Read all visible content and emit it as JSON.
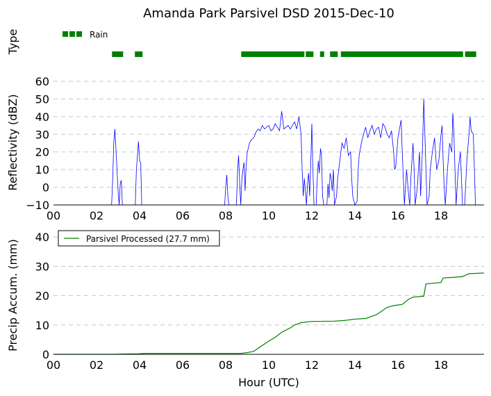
{
  "figure_title": "Amanda Park Parsivel DSD 2015-Dec-10",
  "chart_data": [
    {
      "type": "scatter",
      "panel": "precip-type",
      "ylabel": "Type",
      "legend": {
        "entries": [
          "Rain"
        ],
        "placement": "top-left"
      },
      "color": "#008000",
      "x_units": "hour UTC",
      "xlim": [
        0,
        20
      ],
      "rain_intervals": [
        [
          2.72,
          3.18
        ],
        [
          3.78,
          4.1
        ],
        [
          8.72,
          11.58
        ],
        [
          11.72,
          12.1
        ],
        [
          12.38,
          12.62
        ],
        [
          12.85,
          13.25
        ],
        [
          13.35,
          18.98
        ],
        [
          19.12,
          19.62
        ]
      ]
    },
    {
      "type": "line",
      "panel": "reflectivity",
      "ylabel": "Reflectivity (dBZ)",
      "ylim": [
        -10,
        60
      ],
      "yticks": [
        "−10",
        "0",
        "10",
        "20",
        "30",
        "40",
        "50",
        "60"
      ],
      "xlim": [
        0,
        20
      ],
      "xticks": [
        "00",
        "02",
        "04",
        "06",
        "08",
        "10",
        "12",
        "14",
        "16",
        "18"
      ],
      "grid": true,
      "color": "#0000ff",
      "series": [
        {
          "values_hour_dbz": [
            [
              0,
              -10
            ],
            [
              2.7,
              -10
            ],
            [
              2.75,
              5
            ],
            [
              2.8,
              25
            ],
            [
              2.85,
              33
            ],
            [
              2.9,
              22
            ],
            [
              2.95,
              10
            ],
            [
              3.0,
              -2
            ],
            [
              3.05,
              -10
            ],
            [
              3.1,
              2
            ],
            [
              3.15,
              4
            ],
            [
              3.2,
              -10
            ],
            [
              3.8,
              -10
            ],
            [
              3.85,
              10
            ],
            [
              3.9,
              18
            ],
            [
              3.95,
              26
            ],
            [
              4.0,
              15
            ],
            [
              4.05,
              14
            ],
            [
              4.1,
              -10
            ],
            [
              7.95,
              -10
            ],
            [
              8.0,
              0
            ],
            [
              8.05,
              7
            ],
            [
              8.1,
              -5
            ],
            [
              8.15,
              -10
            ],
            [
              8.5,
              -10
            ],
            [
              8.55,
              10
            ],
            [
              8.6,
              18
            ],
            [
              8.65,
              2
            ],
            [
              8.7,
              -10
            ],
            [
              8.75,
              5
            ],
            [
              8.8,
              10
            ],
            [
              8.85,
              14
            ],
            [
              8.9,
              -2
            ],
            [
              8.95,
              12
            ],
            [
              9.0,
              20
            ],
            [
              9.05,
              22
            ],
            [
              9.1,
              25
            ],
            [
              9.2,
              27
            ],
            [
              9.3,
              28
            ],
            [
              9.4,
              31
            ],
            [
              9.5,
              33
            ],
            [
              9.6,
              32
            ],
            [
              9.7,
              35
            ],
            [
              9.8,
              33
            ],
            [
              9.9,
              34
            ],
            [
              10.0,
              35
            ],
            [
              10.1,
              32
            ],
            [
              10.2,
              33
            ],
            [
              10.3,
              36
            ],
            [
              10.4,
              34
            ],
            [
              10.5,
              32
            ],
            [
              10.6,
              43
            ],
            [
              10.7,
              33
            ],
            [
              10.8,
              34
            ],
            [
              10.9,
              35
            ],
            [
              11.0,
              33
            ],
            [
              11.1,
              35
            ],
            [
              11.2,
              37
            ],
            [
              11.3,
              33
            ],
            [
              11.4,
              40
            ],
            [
              11.5,
              30
            ],
            [
              11.55,
              10
            ],
            [
              11.6,
              -5
            ],
            [
              11.65,
              5
            ],
            [
              11.7,
              -2
            ],
            [
              11.75,
              -10
            ],
            [
              11.8,
              2
            ],
            [
              11.85,
              8
            ],
            [
              11.9,
              -5
            ],
            [
              11.95,
              12
            ],
            [
              12.0,
              36
            ],
            [
              12.05,
              10
            ],
            [
              12.1,
              -10
            ],
            [
              12.2,
              -10
            ],
            [
              12.25,
              5
            ],
            [
              12.3,
              15
            ],
            [
              12.35,
              8
            ],
            [
              12.4,
              22
            ],
            [
              12.45,
              18
            ],
            [
              12.5,
              -5
            ],
            [
              12.55,
              -10
            ],
            [
              12.7,
              -10
            ],
            [
              12.75,
              2
            ],
            [
              12.8,
              -6
            ],
            [
              12.85,
              8
            ],
            [
              12.9,
              5
            ],
            [
              12.95,
              -2
            ],
            [
              13.0,
              10
            ],
            [
              13.05,
              -10
            ],
            [
              13.15,
              -5
            ],
            [
              13.2,
              5
            ],
            [
              13.3,
              15
            ],
            [
              13.4,
              25
            ],
            [
              13.5,
              22
            ],
            [
              13.6,
              28
            ],
            [
              13.7,
              18
            ],
            [
              13.8,
              20
            ],
            [
              13.85,
              5
            ],
            [
              13.9,
              -5
            ],
            [
              14.0,
              -10
            ],
            [
              14.1,
              -8
            ],
            [
              14.15,
              10
            ],
            [
              14.2,
              18
            ],
            [
              14.3,
              25
            ],
            [
              14.4,
              30
            ],
            [
              14.5,
              34
            ],
            [
              14.6,
              28
            ],
            [
              14.7,
              32
            ],
            [
              14.8,
              35
            ],
            [
              14.9,
              30
            ],
            [
              15.0,
              33
            ],
            [
              15.1,
              34
            ],
            [
              15.2,
              28
            ],
            [
              15.3,
              36
            ],
            [
              15.4,
              34
            ],
            [
              15.5,
              30
            ],
            [
              15.6,
              28
            ],
            [
              15.7,
              32
            ],
            [
              15.8,
              20
            ],
            [
              15.85,
              10
            ],
            [
              15.9,
              12
            ],
            [
              16.0,
              28
            ],
            [
              16.1,
              35
            ],
            [
              16.15,
              38
            ],
            [
              16.2,
              20
            ],
            [
              16.25,
              5
            ],
            [
              16.3,
              -10
            ],
            [
              16.4,
              10
            ],
            [
              16.5,
              -5
            ],
            [
              16.55,
              -10
            ],
            [
              16.6,
              5
            ],
            [
              16.7,
              25
            ],
            [
              16.75,
              10
            ],
            [
              16.8,
              -10
            ],
            [
              16.9,
              0
            ],
            [
              17.0,
              20
            ],
            [
              17.05,
              -5
            ],
            [
              17.1,
              10
            ],
            [
              17.15,
              25
            ],
            [
              17.2,
              50
            ],
            [
              17.25,
              30
            ],
            [
              17.3,
              10
            ],
            [
              17.35,
              -10
            ],
            [
              17.45,
              -5
            ],
            [
              17.5,
              10
            ],
            [
              17.6,
              20
            ],
            [
              17.7,
              28
            ],
            [
              17.8,
              10
            ],
            [
              17.9,
              15
            ],
            [
              18.0,
              30
            ],
            [
              18.05,
              35
            ],
            [
              18.1,
              15
            ],
            [
              18.15,
              0
            ],
            [
              18.2,
              -10
            ],
            [
              18.3,
              10
            ],
            [
              18.4,
              25
            ],
            [
              18.5,
              20
            ],
            [
              18.55,
              42
            ],
            [
              18.6,
              30
            ],
            [
              18.7,
              -10
            ],
            [
              18.8,
              10
            ],
            [
              18.9,
              20
            ],
            [
              19.0,
              -10
            ],
            [
              19.1,
              -10
            ],
            [
              19.2,
              15
            ],
            [
              19.3,
              30
            ],
            [
              19.35,
              40
            ],
            [
              19.4,
              32
            ],
            [
              19.5,
              30
            ],
            [
              19.55,
              10
            ],
            [
              19.6,
              -10
            ],
            [
              20,
              -10
            ]
          ]
        }
      ]
    },
    {
      "type": "line",
      "panel": "precip-accumulation",
      "ylabel": "Precip Accum. (mm)",
      "xlabel": "Hour (UTC)",
      "ylim": [
        0,
        45
      ],
      "yticks": [
        "0",
        "10",
        "20",
        "30",
        "40"
      ],
      "xlim": [
        0,
        20
      ],
      "xticks": [
        "00",
        "02",
        "04",
        "06",
        "08",
        "10",
        "12",
        "14",
        "16",
        "18"
      ],
      "grid": true,
      "legend": {
        "entries": [
          "Parsivel Processed (27.7 mm)"
        ],
        "placement": "top-left"
      },
      "color": "#008000",
      "series": [
        {
          "name": "Parsivel Processed (27.7 mm)",
          "values_hour_mm": [
            [
              0,
              0
            ],
            [
              2.8,
              0
            ],
            [
              3.2,
              0.1
            ],
            [
              4.0,
              0.2
            ],
            [
              4.2,
              0.3
            ],
            [
              8.7,
              0.3
            ],
            [
              9.0,
              0.6
            ],
            [
              9.3,
              1
            ],
            [
              9.6,
              2.5
            ],
            [
              10.0,
              4.5
            ],
            [
              10.3,
              5.8
            ],
            [
              10.6,
              7.5
            ],
            [
              11.0,
              9
            ],
            [
              11.2,
              10
            ],
            [
              11.5,
              10.8
            ],
            [
              12.0,
              11.2
            ],
            [
              13.0,
              11.3
            ],
            [
              13.5,
              11.5
            ],
            [
              14.0,
              12
            ],
            [
              14.5,
              12.2
            ],
            [
              15.0,
              13.5
            ],
            [
              15.5,
              16
            ],
            [
              15.8,
              16.6
            ],
            [
              16.2,
              17
            ],
            [
              16.5,
              18.8
            ],
            [
              16.7,
              19.5
            ],
            [
              17.2,
              19.8
            ],
            [
              17.3,
              24
            ],
            [
              17.6,
              24.2
            ],
            [
              18.0,
              24.5
            ],
            [
              18.1,
              26
            ],
            [
              18.5,
              26.2
            ],
            [
              19.0,
              26.5
            ],
            [
              19.3,
              27.5
            ],
            [
              20,
              27.7
            ]
          ]
        }
      ]
    }
  ]
}
